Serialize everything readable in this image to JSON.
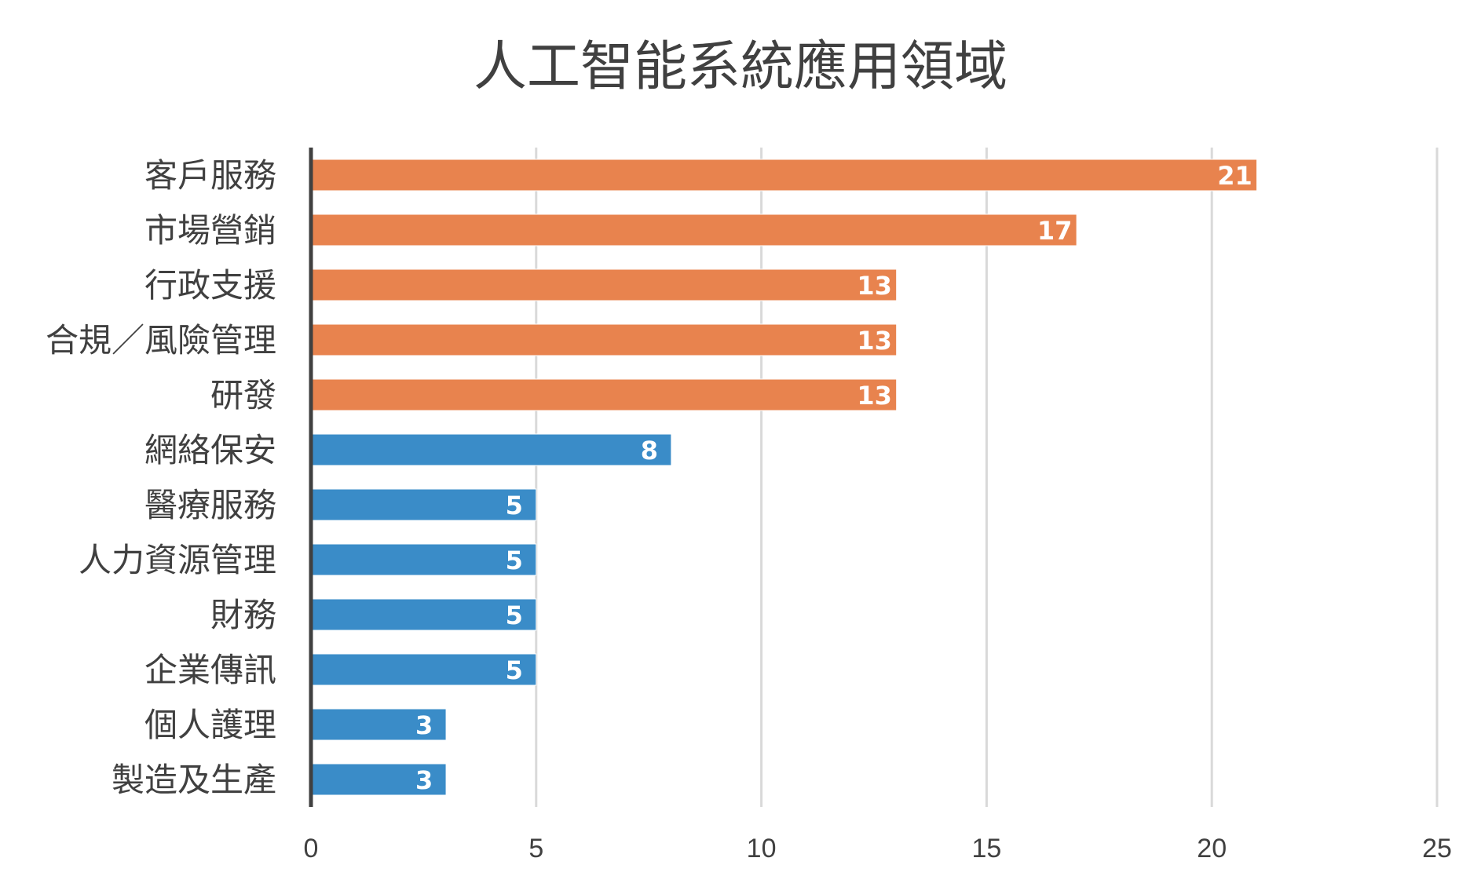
{
  "chart_data": {
    "type": "bar",
    "orientation": "horizontal",
    "title": "人工智能系統應用領域",
    "xlabel": "",
    "ylabel": "",
    "categories": [
      "客戶服務",
      "市場營銷",
      "行政支援",
      "合規／風險管理",
      "研發",
      "網絡保安",
      "醫療服務",
      "人力資源管理",
      "財務",
      "企業傳訊",
      "個人護理",
      "製造及生產"
    ],
    "values": [
      21,
      17,
      13,
      13,
      13,
      8,
      5,
      5,
      5,
      5,
      3,
      3
    ],
    "bar_colors": [
      "#E8834E",
      "#E8834E",
      "#E8834E",
      "#E8834E",
      "#E8834E",
      "#3A8CC8",
      "#3A8CC8",
      "#3A8CC8",
      "#3A8CC8",
      "#3A8CC8",
      "#3A8CC8",
      "#3A8CC8"
    ],
    "xlim": [
      0,
      25
    ],
    "xticks": [
      0,
      5,
      10,
      15,
      20,
      25
    ],
    "grid": true,
    "legend": "none",
    "data_labels": true
  }
}
